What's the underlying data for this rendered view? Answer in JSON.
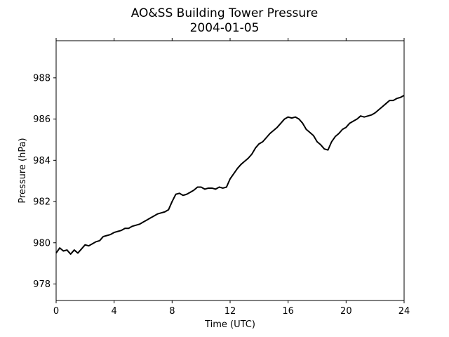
{
  "chart_data": {
    "type": "line",
    "title": "AO&SS Building Tower Pressure",
    "subtitle": "2004-01-05",
    "xlabel": "Time (UTC)",
    "ylabel": "Pressure (hPa)",
    "xlim": [
      0,
      24
    ],
    "ylim": [
      977.2,
      989.8
    ],
    "xticks": [
      0,
      4,
      8,
      12,
      16,
      20,
      24
    ],
    "yticks": [
      978,
      980,
      982,
      984,
      986,
      988
    ],
    "grid": false,
    "line_color": "#000000",
    "series": [
      {
        "x": [
          0,
          0.25,
          0.5,
          0.75,
          1,
          1.25,
          1.5,
          1.75,
          2,
          2.25,
          2.5,
          2.75,
          3,
          3.25,
          3.5,
          3.75,
          4,
          4.25,
          4.5,
          4.75,
          5,
          5.25,
          5.5,
          5.75,
          6,
          6.25,
          6.5,
          6.75,
          7,
          7.25,
          7.5,
          7.75,
          8,
          8.25,
          8.5,
          8.75,
          9,
          9.25,
          9.5,
          9.75,
          10,
          10.25,
          10.5,
          10.75,
          11,
          11.25,
          11.5,
          11.75,
          12,
          12.25,
          12.5,
          12.75,
          13,
          13.25,
          13.5,
          13.75,
          14,
          14.25,
          14.5,
          14.75,
          15,
          15.25,
          15.5,
          15.75,
          16,
          16.25,
          16.5,
          16.75,
          17,
          17.25,
          17.5,
          17.75,
          18,
          18.25,
          18.5,
          18.75,
          19,
          19.25,
          19.5,
          19.75,
          20,
          20.25,
          20.5,
          20.75,
          21,
          21.25,
          21.5,
          21.75,
          22,
          22.25,
          22.5,
          22.75,
          23,
          23.25,
          23.5,
          23.75,
          24
        ],
        "y": [
          979.5,
          979.75,
          979.6,
          979.65,
          979.45,
          979.65,
          979.5,
          979.7,
          979.9,
          979.85,
          979.95,
          980.05,
          980.1,
          980.3,
          980.35,
          980.4,
          980.5,
          980.55,
          980.6,
          980.7,
          980.7,
          980.8,
          980.85,
          980.9,
          981.0,
          981.1,
          981.2,
          981.3,
          981.4,
          981.45,
          981.5,
          981.6,
          982.0,
          982.35,
          982.4,
          982.3,
          982.35,
          982.45,
          982.55,
          982.7,
          982.7,
          982.6,
          982.65,
          982.65,
          982.6,
          982.7,
          982.65,
          982.7,
          983.1,
          983.35,
          983.6,
          983.8,
          983.95,
          984.1,
          984.3,
          984.6,
          984.8,
          984.9,
          985.1,
          985.3,
          985.45,
          985.6,
          985.8,
          986.0,
          986.1,
          986.05,
          986.1,
          986.0,
          985.8,
          985.5,
          985.35,
          985.2,
          984.9,
          984.75,
          984.55,
          984.5,
          984.9,
          985.15,
          985.3,
          985.5,
          985.6,
          985.8,
          985.9,
          986.0,
          986.15,
          986.1,
          986.15,
          986.2,
          986.3,
          986.45,
          986.6,
          986.75,
          986.9,
          986.9,
          987.0,
          987.05,
          987.15
        ]
      }
    ]
  }
}
